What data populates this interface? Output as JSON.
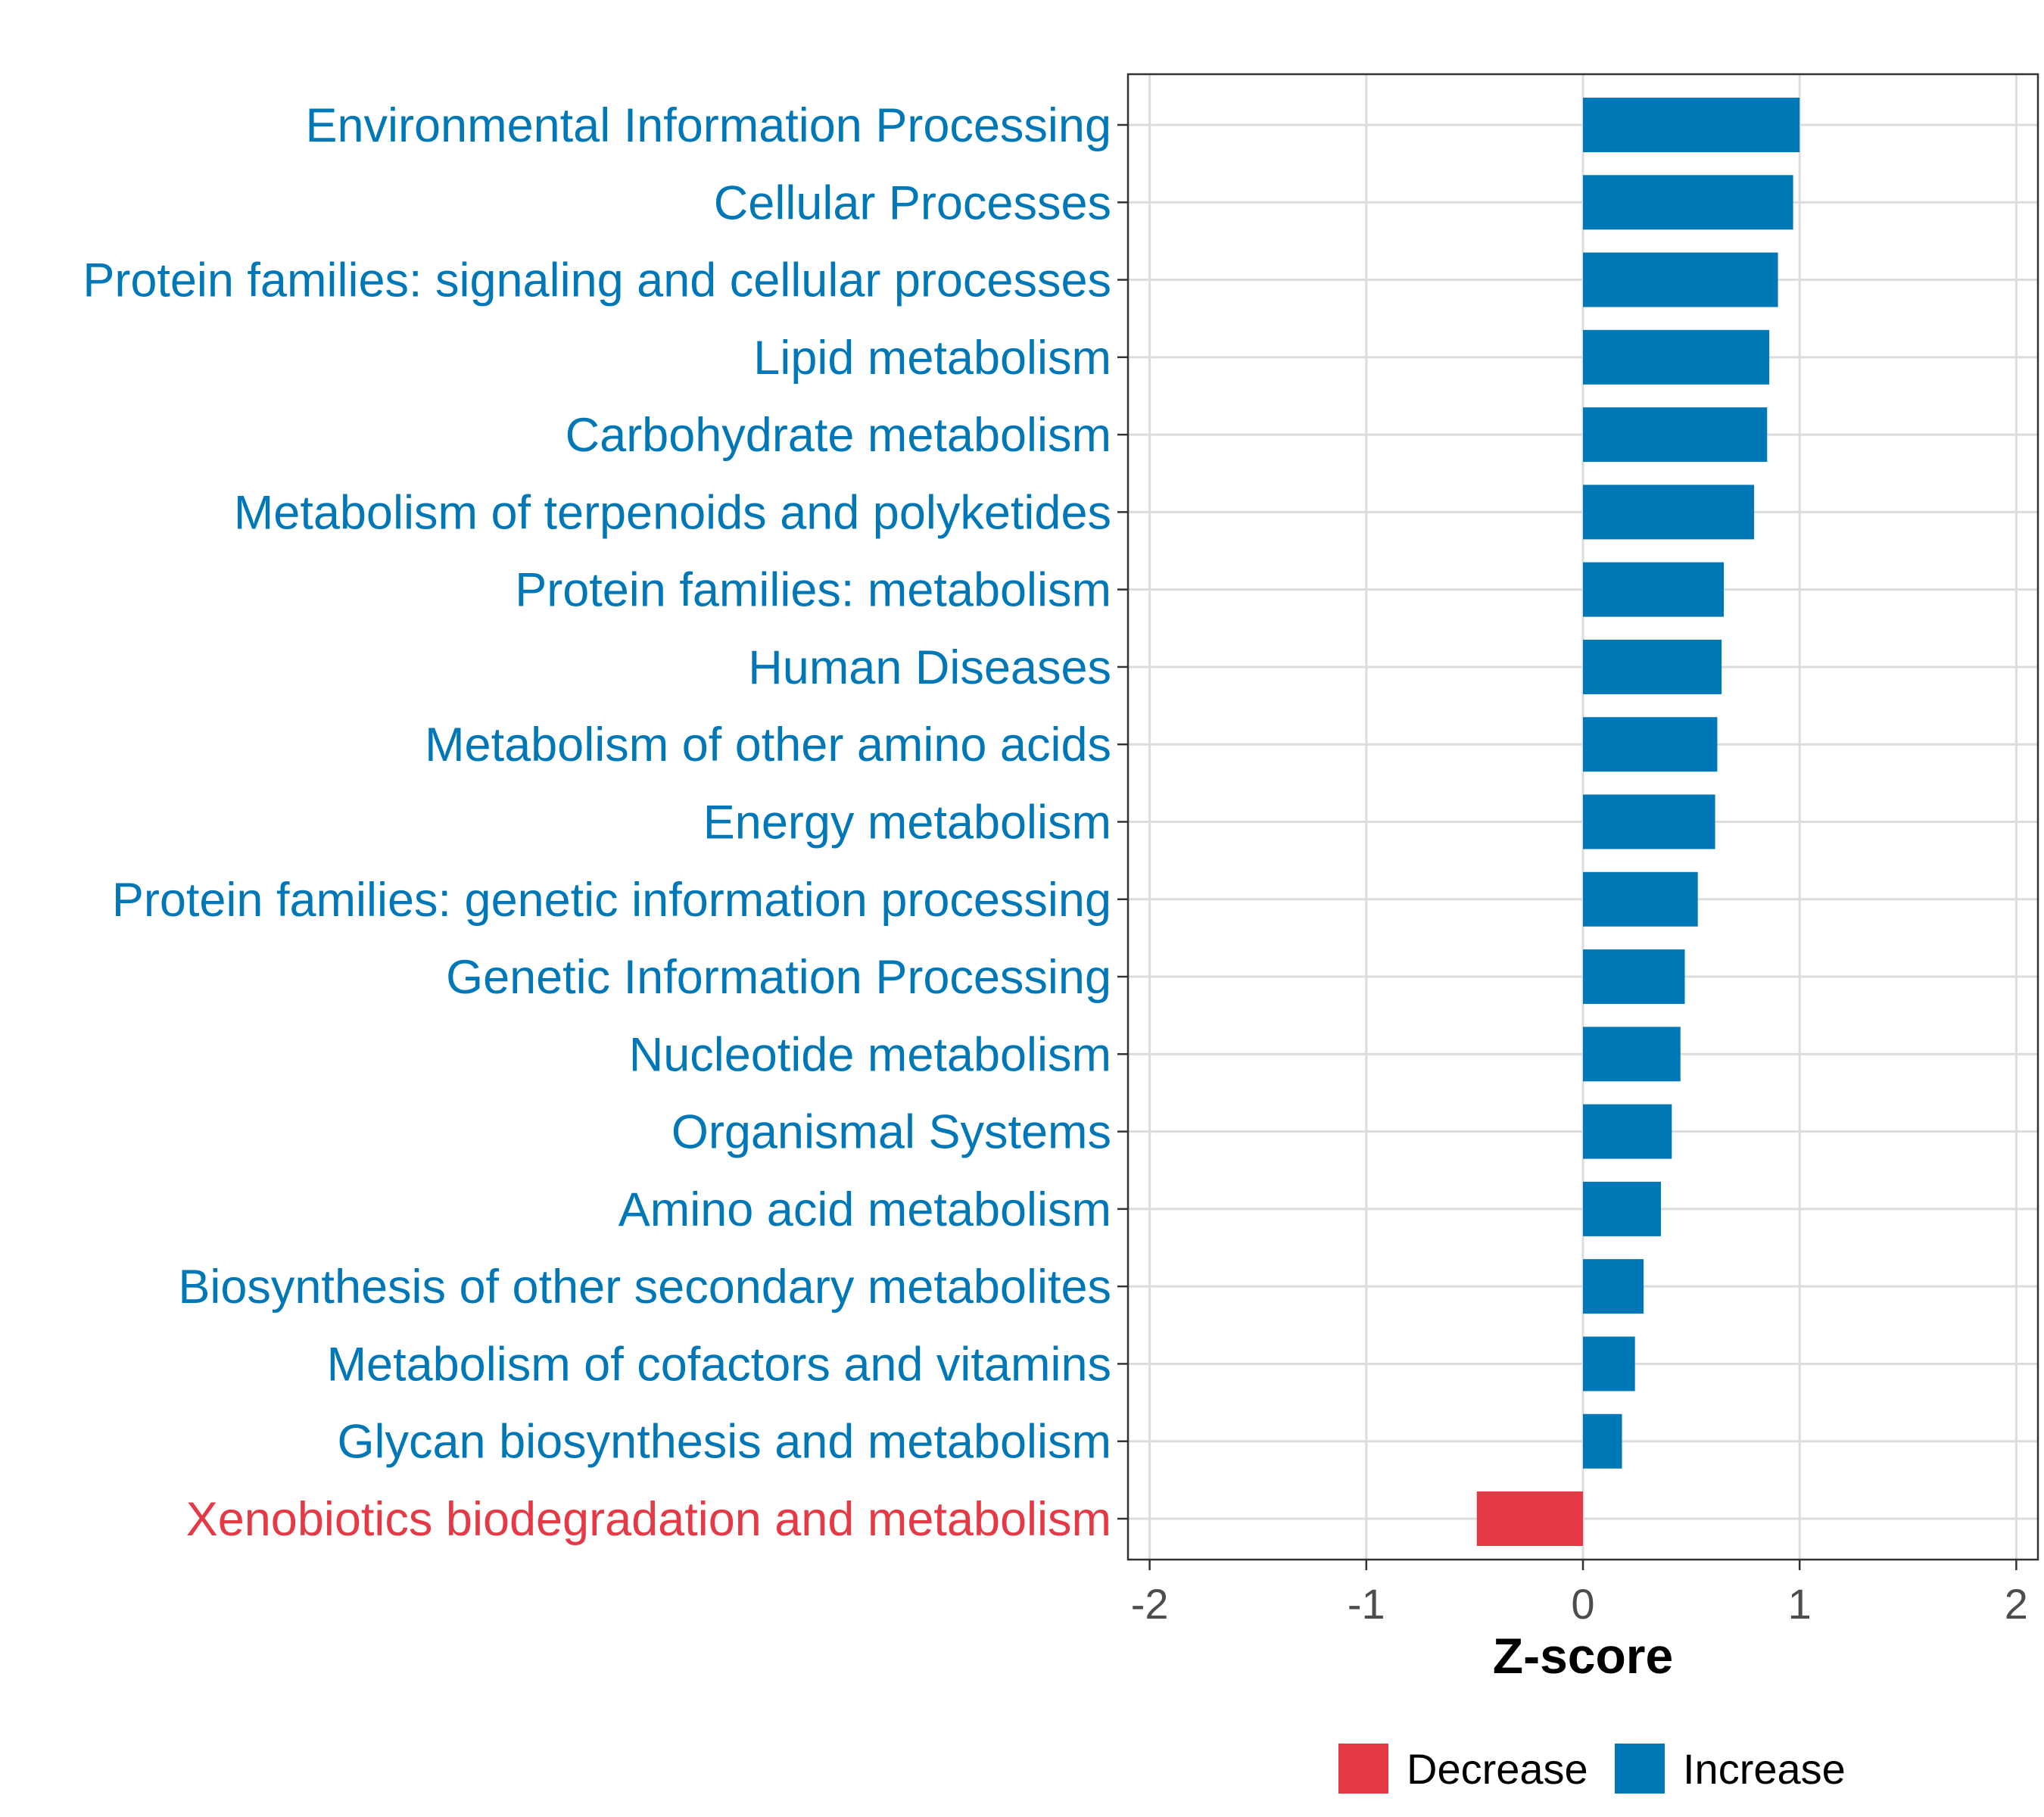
{
  "chart_data": {
    "type": "bar",
    "orientation": "horizontal",
    "title": "",
    "xlabel": "Z-score",
    "ylabel": "",
    "xlim": [
      -2.1,
      2.1
    ],
    "xticks": [
      -2,
      -1,
      0,
      1,
      2
    ],
    "xtick_labels": [
      "-2",
      "-1",
      "0",
      "1",
      "2"
    ],
    "grid": true,
    "legend_position": "bottom",
    "colors": {
      "Decrease": "#e63946",
      "Increase": "#0077b6"
    },
    "categories": [
      "Environmental Information Processing",
      "Cellular Processes",
      "Protein families: signaling and cellular processes",
      "Lipid metabolism",
      "Carbohydrate metabolism",
      "Metabolism of terpenoids and polyketides",
      "Protein families: metabolism",
      "Human Diseases",
      "Metabolism of other amino acids",
      "Energy metabolism",
      "Protein families: genetic information processing",
      "Genetic Information Processing",
      "Nucleotide metabolism",
      "Organismal Systems",
      "Amino acid metabolism",
      "Biosynthesis of other secondary metabolites",
      "Metabolism of cofactors and vitamins",
      "Glycan biosynthesis and metabolism",
      "Xenobiotics biodegradation and metabolism"
    ],
    "values": [
      1.0,
      0.97,
      0.9,
      0.86,
      0.85,
      0.79,
      0.65,
      0.64,
      0.62,
      0.61,
      0.53,
      0.47,
      0.45,
      0.41,
      0.36,
      0.28,
      0.24,
      0.18,
      -0.49
    ],
    "groups": [
      "Increase",
      "Increase",
      "Increase",
      "Increase",
      "Increase",
      "Increase",
      "Increase",
      "Increase",
      "Increase",
      "Increase",
      "Increase",
      "Increase",
      "Increase",
      "Increase",
      "Increase",
      "Increase",
      "Increase",
      "Increase",
      "Decrease"
    ],
    "legend": [
      {
        "name": "Decrease",
        "color": "#e63946"
      },
      {
        "name": "Increase",
        "color": "#0077b6"
      }
    ]
  }
}
